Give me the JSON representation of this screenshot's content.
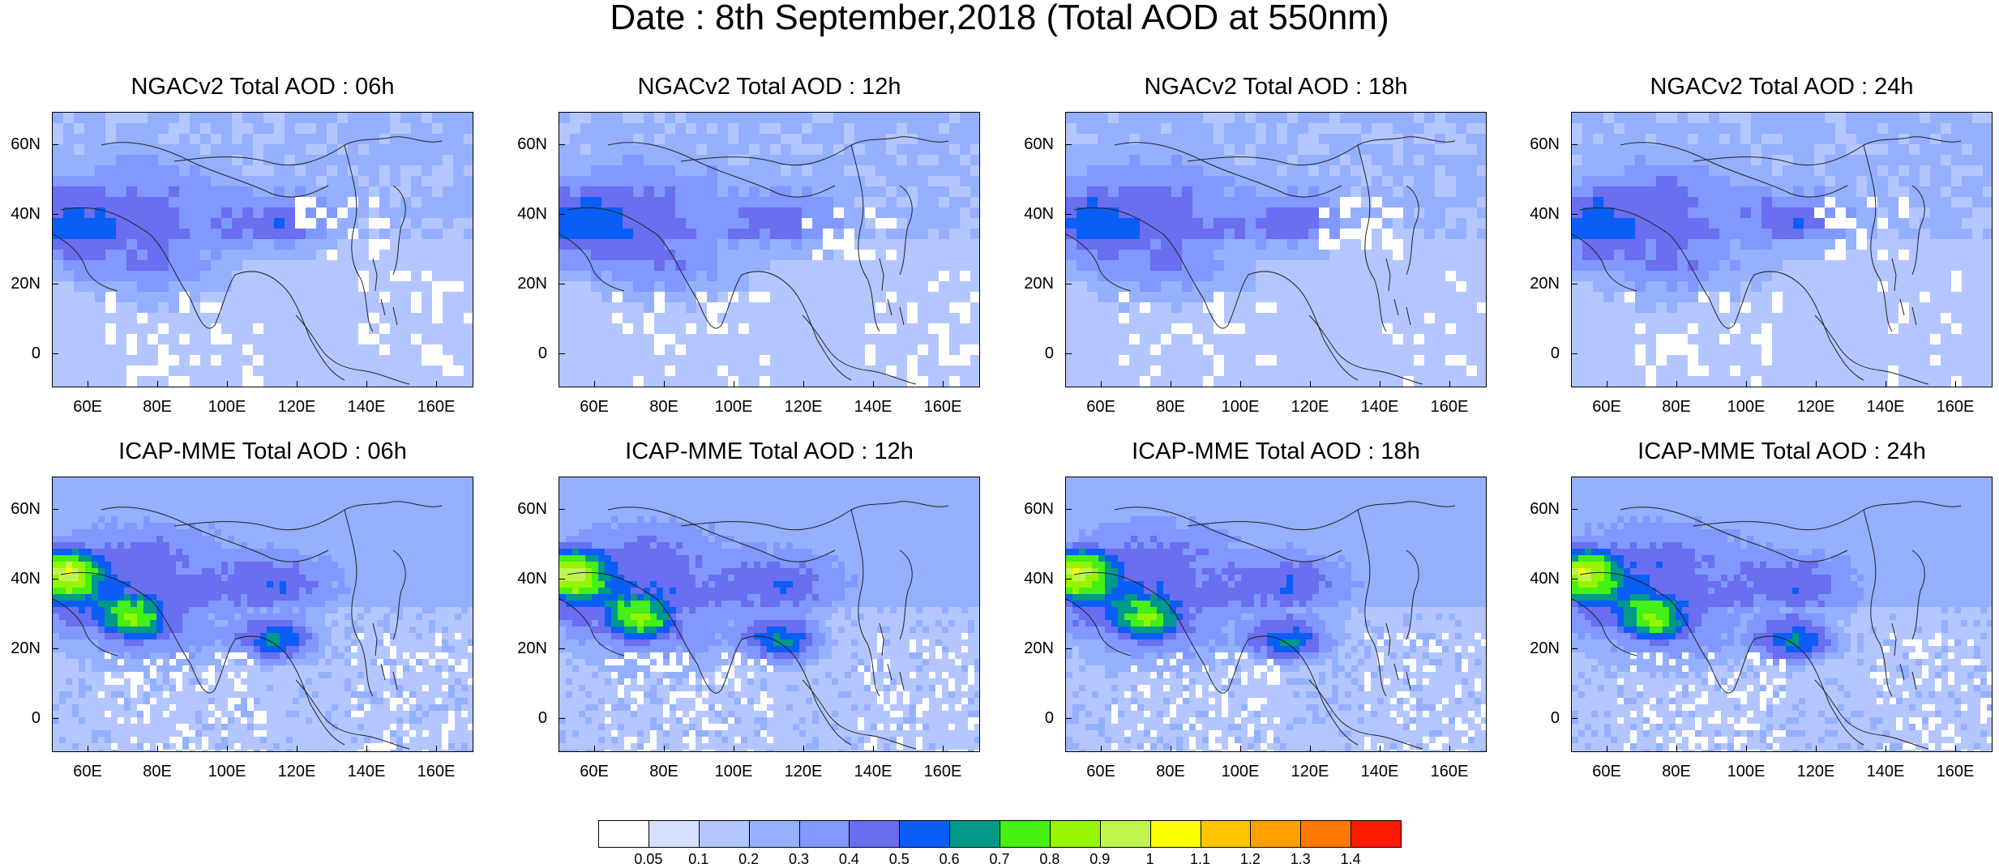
{
  "title": "Date : 8th September,2018 (Total AOD at 550nm)",
  "lat_labels": [
    "60N",
    "40N",
    "20N",
    "0"
  ],
  "lon_labels": [
    "60E",
    "80E",
    "100E",
    "120E",
    "140E",
    "160E"
  ],
  "panels": [
    {
      "title": "NGACv2 Total AOD : 06h",
      "model": "NGACv2",
      "hour": "06h"
    },
    {
      "title": "NGACv2 Total AOD : 12h",
      "model": "NGACv2",
      "hour": "12h"
    },
    {
      "title": "NGACv2 Total AOD : 18h",
      "model": "NGACv2",
      "hour": "18h"
    },
    {
      "title": "NGACv2 Total AOD : 24h",
      "model": "NGACv2",
      "hour": "24h"
    },
    {
      "title": "ICAP-MME Total AOD : 06h",
      "model": "ICAP-MME",
      "hour": "06h"
    },
    {
      "title": "ICAP-MME Total AOD : 12h",
      "model": "ICAP-MME",
      "hour": "12h"
    },
    {
      "title": "ICAP-MME Total AOD : 18h",
      "model": "ICAP-MME",
      "hour": "18h"
    },
    {
      "title": "ICAP-MME Total AOD : 24h",
      "model": "ICAP-MME",
      "hour": "24h"
    }
  ],
  "colorbar": {
    "labels": [
      "0.05",
      "0.1",
      "0.2",
      "0.3",
      "0.4",
      "0.5",
      "0.6",
      "0.7",
      "0.8",
      "0.9",
      "1",
      "1.1",
      "1.2",
      "1.3",
      "1.4"
    ],
    "colors": [
      "#ffffff",
      "#d6e0ff",
      "#b4c6ff",
      "#94b0ff",
      "#8098ff",
      "#6a6ef0",
      "#0b5ef5",
      "#00998a",
      "#44f015",
      "#96f500",
      "#c0f550",
      "#ffff00",
      "#ffc600",
      "#ffa000",
      "#ff7a00",
      "#ff1a00"
    ]
  }
}
